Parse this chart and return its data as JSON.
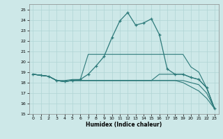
{
  "xlabel": "Humidex (Indice chaleur)",
  "ylabel": "",
  "xlim": [
    -0.5,
    23.5
  ],
  "ylim": [
    15,
    25.5
  ],
  "yticks": [
    15,
    16,
    17,
    18,
    19,
    20,
    21,
    22,
    23,
    24,
    25
  ],
  "xticks": [
    0,
    1,
    2,
    3,
    4,
    5,
    6,
    7,
    8,
    9,
    10,
    11,
    12,
    13,
    14,
    15,
    16,
    17,
    18,
    19,
    20,
    21,
    22,
    23
  ],
  "bg_color": "#cde8e8",
  "line_color": "#2d7a7a",
  "grid_color": "#b0d4d4",
  "lines": [
    {
      "x": [
        0,
        1,
        2,
        3,
        4,
        5,
        6,
        7,
        8,
        9,
        10,
        11,
        12,
        13,
        14,
        15,
        16,
        17,
        18,
        19,
        20,
        21,
        22,
        23
      ],
      "y": [
        18.8,
        18.7,
        18.6,
        18.2,
        18.1,
        18.2,
        18.3,
        18.8,
        19.6,
        20.5,
        22.3,
        23.9,
        24.7,
        23.5,
        23.7,
        24.1,
        22.6,
        19.3,
        18.8,
        18.8,
        18.5,
        18.3,
        17.5,
        15.5
      ],
      "with_markers": true
    },
    {
      "x": [
        0,
        1,
        2,
        3,
        4,
        5,
        6,
        7,
        8,
        9,
        10,
        11,
        12,
        13,
        14,
        15,
        16,
        17,
        18,
        19,
        20,
        21,
        22,
        23
      ],
      "y": [
        18.8,
        18.7,
        18.6,
        18.2,
        18.1,
        18.2,
        18.2,
        18.2,
        18.2,
        18.2,
        18.2,
        18.2,
        18.2,
        18.2,
        18.2,
        18.2,
        18.8,
        18.8,
        18.8,
        18.8,
        18.5,
        18.3,
        17.5,
        15.5
      ],
      "with_markers": false
    },
    {
      "x": [
        0,
        1,
        2,
        3,
        4,
        5,
        6,
        7,
        8,
        9,
        10,
        11,
        12,
        13,
        14,
        15,
        16,
        17,
        18,
        19,
        20,
        21,
        22,
        23
      ],
      "y": [
        18.8,
        18.7,
        18.6,
        18.2,
        18.1,
        18.2,
        18.2,
        18.2,
        18.2,
        18.2,
        18.2,
        18.2,
        18.2,
        18.2,
        18.2,
        18.2,
        18.2,
        18.2,
        18.2,
        18.0,
        17.6,
        17.2,
        16.5,
        15.5
      ],
      "with_markers": false
    },
    {
      "x": [
        0,
        1,
        2,
        3,
        4,
        5,
        6,
        7,
        8,
        9,
        10,
        11,
        12,
        13,
        14,
        15,
        16,
        17,
        18,
        19,
        20,
        21,
        22,
        23
      ],
      "y": [
        18.8,
        18.7,
        18.6,
        18.2,
        18.1,
        18.2,
        18.2,
        18.2,
        18.2,
        18.2,
        18.2,
        18.2,
        18.2,
        18.2,
        18.2,
        18.2,
        18.2,
        18.2,
        18.2,
        18.2,
        18.0,
        17.8,
        17.0,
        15.5
      ],
      "with_markers": false
    },
    {
      "x": [
        0,
        1,
        2,
        3,
        4,
        5,
        6,
        7,
        8,
        9,
        10,
        11,
        12,
        13,
        14,
        15,
        16,
        17,
        18,
        19,
        20,
        21,
        22,
        23
      ],
      "y": [
        18.8,
        18.7,
        18.6,
        18.2,
        18.2,
        18.3,
        18.3,
        20.7,
        20.7,
        20.7,
        20.7,
        20.7,
        20.7,
        20.7,
        20.7,
        20.7,
        20.7,
        20.7,
        20.7,
        20.7,
        19.5,
        19.0,
        17.5,
        15.5
      ],
      "with_markers": false
    }
  ]
}
